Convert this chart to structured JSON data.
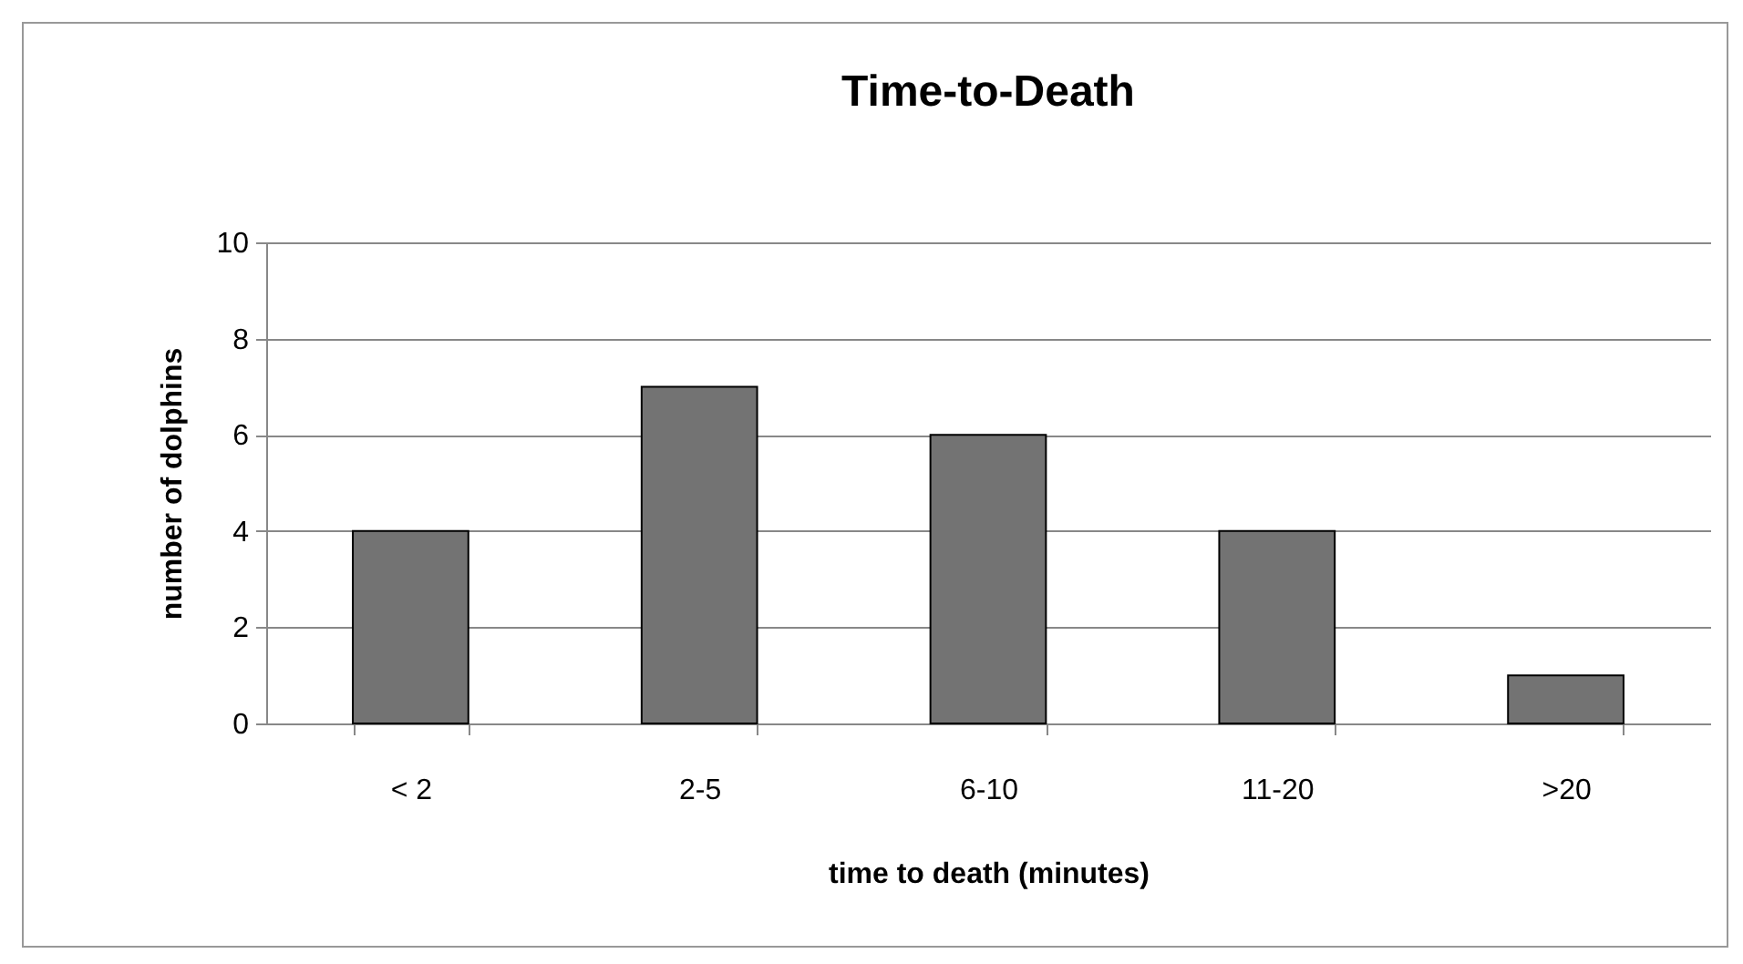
{
  "chart_data": {
    "type": "bar",
    "title": "Time-to-Death",
    "xlabel": "time to death (minutes)",
    "ylabel": "number of dolphins",
    "categories": [
      "< 2",
      "2-5",
      "6-10",
      "11-20",
      ">20"
    ],
    "values": [
      4,
      7,
      6,
      4,
      1
    ],
    "color": "#737373",
    "ylim": [
      0,
      10
    ],
    "yticks": [
      0,
      2,
      4,
      6,
      8,
      10
    ],
    "grid": "y"
  }
}
